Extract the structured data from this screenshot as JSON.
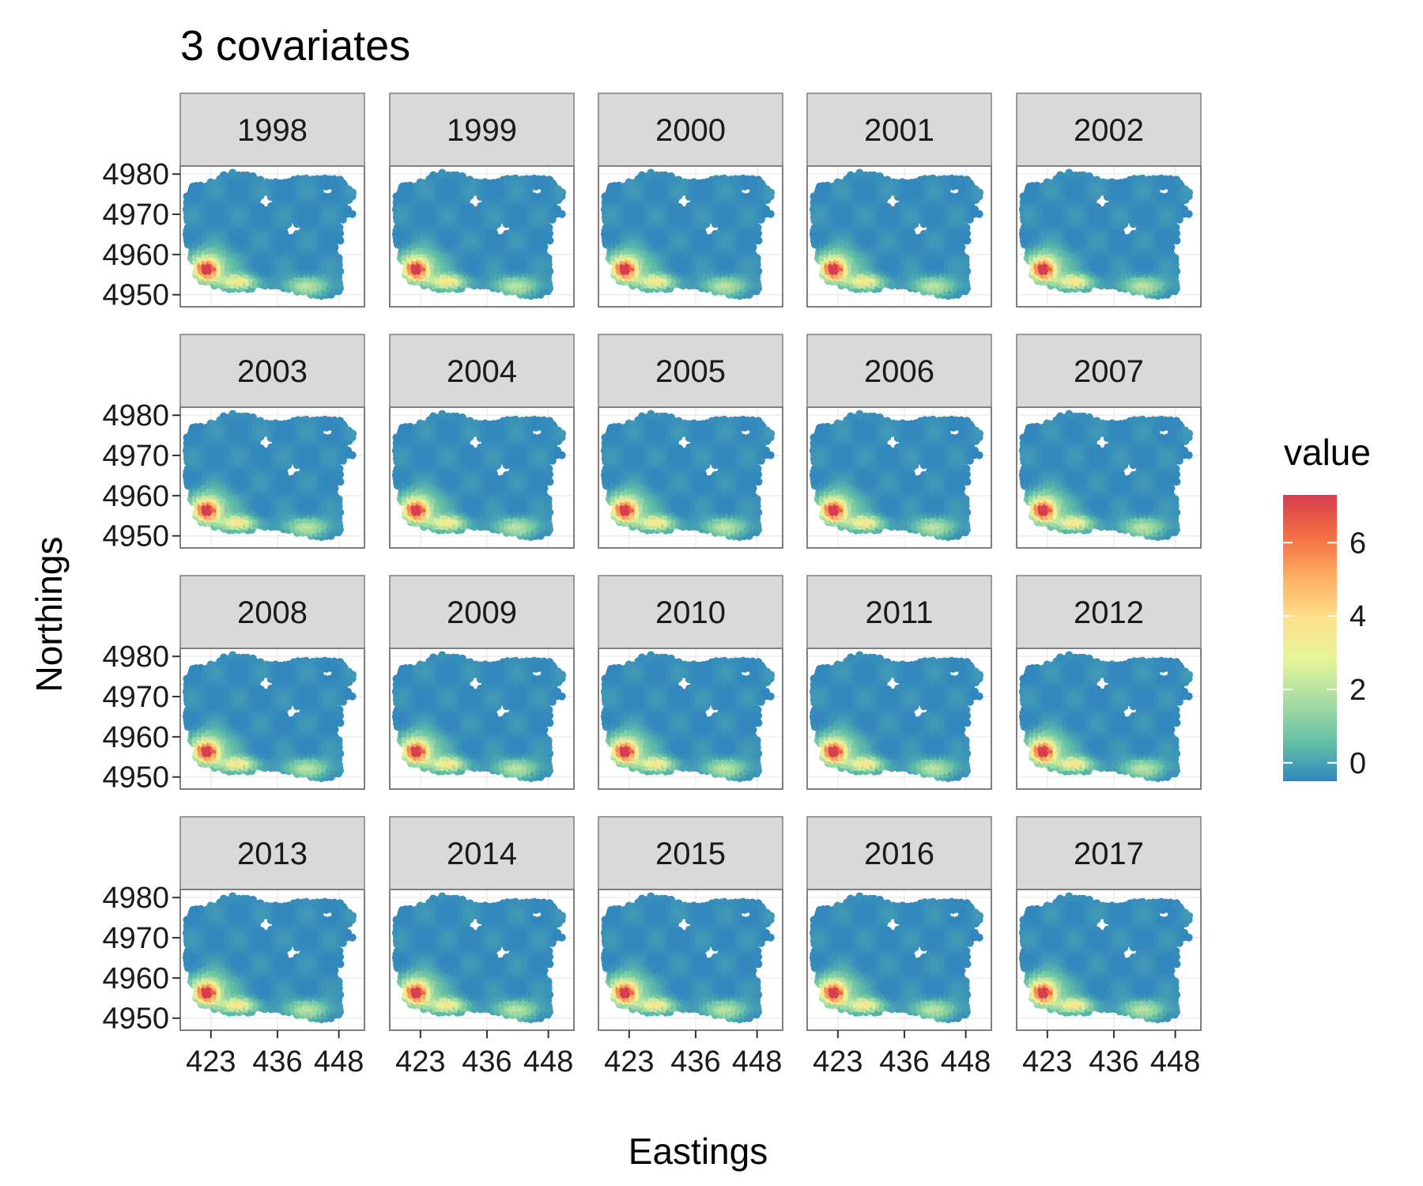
{
  "chart_data": {
    "type": "heatmap",
    "title": "3 covariates",
    "xlabel": "Eastings",
    "ylabel": "Northings",
    "panels": [
      "1998",
      "1999",
      "2000",
      "2001",
      "2002",
      "2003",
      "2004",
      "2005",
      "2006",
      "2007",
      "2008",
      "2009",
      "2010",
      "2011",
      "2012",
      "2013",
      "2014",
      "2015",
      "2016",
      "2017"
    ],
    "facet_layout": {
      "columns": 5,
      "rows": 4
    },
    "x_ticks": [
      423,
      436,
      448
    ],
    "y_ticks": [
      4950,
      4960,
      4970,
      4980
    ],
    "xlim": [
      417,
      453
    ],
    "ylim": [
      4947,
      4982
    ],
    "legend": {
      "title": "value",
      "ticks": [
        0,
        2,
        4,
        6
      ],
      "range": [
        -0.5,
        7.3
      ],
      "placement": "right",
      "colors": [
        "#3288bd",
        "#66c2a5",
        "#abdda4",
        "#e6f598",
        "#fee08b",
        "#fdae61",
        "#f46d43",
        "#d53e4f"
      ]
    },
    "grid": true,
    "surface_hotspots": [
      {
        "easting": 422.5,
        "northing": 4956.5,
        "peak_value": 7.0
      },
      {
        "easting": 428.5,
        "northing": 4953.5,
        "peak_value": 4.2
      },
      {
        "easting": 442,
        "northing": 4952.5,
        "peak_value": 2.3
      }
    ]
  }
}
